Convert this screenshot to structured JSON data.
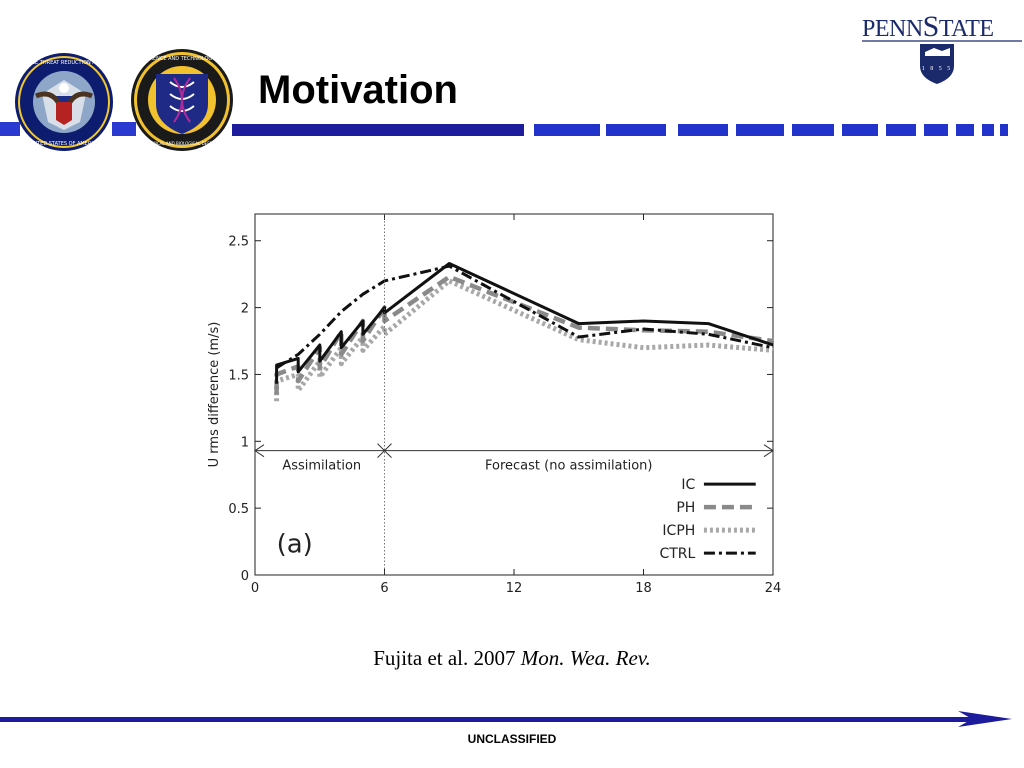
{
  "slide": {
    "title": "Motivation",
    "classification": "UNCLASSIFIED",
    "citation_plain": "Fujita et al. 2007 ",
    "citation_italic": "Mon. Wea. Rev."
  },
  "logos": {
    "seal_left_text": "DEFENSE THREAT REDUCTION AGENCY • UNITED STATES OF AMERICA",
    "seal_right_text": "JOINT SCIENCE AND TECHNOLOGY OFFICE • CHEMICAL AND BIOLOGICAL DEFENSE",
    "psu_wordmark": "PENNSTATE",
    "psu_year": "1855"
  },
  "colors": {
    "brand_blue": "#1c1c9c",
    "navy": "#1b2a6b",
    "ic": "#111111",
    "ph": "#8a8a8a",
    "icph": "#a8a8a8",
    "ctrl": "#111111"
  },
  "chart_data": {
    "type": "line",
    "panel_label": "(a)",
    "xlabel": "",
    "ylabel": "U rms difference (m/s)",
    "xlim": [
      0,
      24
    ],
    "ylim": [
      0,
      2.7
    ],
    "xticks": [
      0,
      6,
      12,
      18,
      24
    ],
    "yticks": [
      0,
      0.5,
      1,
      1.5,
      2,
      2.5
    ],
    "ytick_labels": [
      "0",
      "0.5",
      "1",
      "1.5",
      "2",
      "2.5"
    ],
    "grid": false,
    "legend_position": "bottom-right",
    "annotations": {
      "assimilation": "Assimilation",
      "forecast": "Forecast (no assimilation)",
      "divider_x": 6,
      "arrow_y": 0.93
    },
    "series": [
      {
        "name": "IC",
        "style": "solid",
        "x": [
          1,
          1,
          2,
          2,
          3,
          3,
          4,
          4,
          5,
          5,
          6,
          6,
          9,
          15,
          18,
          21,
          24
        ],
        "y": [
          1.43,
          1.57,
          1.62,
          1.52,
          1.72,
          1.6,
          1.82,
          1.7,
          1.9,
          1.8,
          2.0,
          1.96,
          2.33,
          1.88,
          1.9,
          1.88,
          1.72
        ]
      },
      {
        "name": "PH",
        "style": "dashed",
        "x": [
          1,
          1,
          2,
          2,
          3,
          3,
          4,
          4,
          5,
          5,
          6,
          6,
          9,
          15,
          18,
          21,
          24
        ],
        "y": [
          1.35,
          1.5,
          1.56,
          1.45,
          1.7,
          1.55,
          1.82,
          1.65,
          1.9,
          1.75,
          2.0,
          1.9,
          2.23,
          1.85,
          1.83,
          1.82,
          1.75
        ]
      },
      {
        "name": "ICPH",
        "style": "dotted",
        "x": [
          1,
          1,
          2,
          2,
          3,
          3,
          4,
          4,
          5,
          5,
          6,
          6,
          9,
          15,
          18,
          21,
          24
        ],
        "y": [
          1.3,
          1.45,
          1.5,
          1.38,
          1.6,
          1.48,
          1.7,
          1.58,
          1.78,
          1.68,
          1.86,
          1.8,
          2.2,
          1.76,
          1.7,
          1.72,
          1.68
        ]
      },
      {
        "name": "CTRL",
        "style": "dashdot",
        "x": [
          1,
          1.5,
          2,
          3,
          4,
          5,
          6,
          9,
          15,
          18,
          21,
          24
        ],
        "y": [
          1.55,
          1.6,
          1.65,
          1.8,
          1.97,
          2.1,
          2.2,
          2.31,
          1.78,
          1.84,
          1.8,
          1.7
        ]
      }
    ]
  }
}
